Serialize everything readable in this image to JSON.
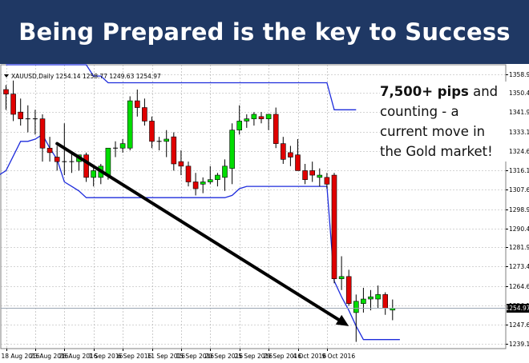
{
  "header": {
    "title": "Being Prepared is the key to Success"
  },
  "annotation": {
    "highlight": "7,500+ pips",
    "text": " and counting - a current move in the Gold market!"
  },
  "chart_data": {
    "type": "candlestick",
    "instrument_info": "XAUUSD,Daily  1254.14 1258.77 1249.63 1254.97",
    "current_price": 1254.97,
    "current_price_label": "1254.97",
    "ylim": [
      1237.0,
      1363.0
    ],
    "yticks": [
      "1358.90",
      "1350.40",
      "1341.90",
      "1333.15",
      "1324.65",
      "1316.15",
      "1307.65",
      "1298.90",
      "1290.40",
      "1281.90",
      "1273.40",
      "1264.65",
      "1256.15",
      "1247.65",
      "1239.15"
    ],
    "date_labels": [
      {
        "label": "18 Aug 2016",
        "i": 0
      },
      {
        "label": "23 Aug 2016",
        "i": 4
      },
      {
        "label": "28 Aug 2016",
        "i": 8
      },
      {
        "label": "1 Sep 2016",
        "i": 12
      },
      {
        "label": "6 Sep 2016",
        "i": 16
      },
      {
        "label": "11 Sep 2016",
        "i": 20
      },
      {
        "label": "15 Sep 2016",
        "i": 24
      },
      {
        "label": "20 Sep 2016",
        "i": 28
      },
      {
        "label": "25 Sep 2016",
        "i": 32
      },
      {
        "label": "29 Sep 2016",
        "i": 36
      },
      {
        "label": "4 Oct 2016",
        "i": 40
      },
      {
        "label": "9 Oct 2016",
        "i": 44
      }
    ],
    "candles": [
      {
        "o": 1352.0,
        "h": 1354.0,
        "l": 1343.0,
        "c": 1350.0
      },
      {
        "o": 1350.0,
        "h": 1356.0,
        "l": 1338.0,
        "c": 1341.0
      },
      {
        "o": 1342.0,
        "h": 1348.0,
        "l": 1336.0,
        "c": 1339.0
      },
      {
        "o": 1339.0,
        "h": 1345.0,
        "l": 1333.0,
        "c": 1339.0
      },
      {
        "o": 1339.0,
        "h": 1343.0,
        "l": 1332.0,
        "c": 1339.0
      },
      {
        "o": 1339.0,
        "h": 1341.0,
        "l": 1320.0,
        "c": 1326.0
      },
      {
        "o": 1326.0,
        "h": 1331.0,
        "l": 1320.0,
        "c": 1324.0
      },
      {
        "o": 1322.0,
        "h": 1327.0,
        "l": 1316.0,
        "c": 1320.0
      },
      {
        "o": 1320.0,
        "h": 1337.0,
        "l": 1314.0,
        "c": 1320.0
      },
      {
        "o": 1320.0,
        "h": 1324.0,
        "l": 1315.0,
        "c": 1320.0
      },
      {
        "o": 1320.0,
        "h": 1323.0,
        "l": 1316.0,
        "c": 1323.0
      },
      {
        "o": 1323.0,
        "h": 1324.0,
        "l": 1311.0,
        "c": 1313.0
      },
      {
        "o": 1313.0,
        "h": 1318.0,
        "l": 1309.0,
        "c": 1316.0
      },
      {
        "o": 1313.0,
        "h": 1319.0,
        "l": 1310.0,
        "c": 1318.0
      },
      {
        "o": 1314.0,
        "h": 1325.0,
        "l": 1312.0,
        "c": 1326.0
      },
      {
        "o": 1326.0,
        "h": 1329.0,
        "l": 1322.0,
        "c": 1326.0
      },
      {
        "o": 1326.0,
        "h": 1330.0,
        "l": 1324.0,
        "c": 1328.0
      },
      {
        "o": 1326.0,
        "h": 1349.0,
        "l": 1325.0,
        "c": 1347.0
      },
      {
        "o": 1347.0,
        "h": 1352.0,
        "l": 1340.0,
        "c": 1344.0
      },
      {
        "o": 1344.0,
        "h": 1348.0,
        "l": 1336.0,
        "c": 1338.0
      },
      {
        "o": 1338.0,
        "h": 1340.0,
        "l": 1326.0,
        "c": 1329.0
      },
      {
        "o": 1329.0,
        "h": 1331.0,
        "l": 1325.0,
        "c": 1329.0
      },
      {
        "o": 1329.0,
        "h": 1334.0,
        "l": 1322.0,
        "c": 1330.0
      },
      {
        "o": 1331.0,
        "h": 1333.0,
        "l": 1316.0,
        "c": 1319.0
      },
      {
        "o": 1320.0,
        "h": 1325.0,
        "l": 1314.0,
        "c": 1318.0
      },
      {
        "o": 1318.0,
        "h": 1320.0,
        "l": 1309.0,
        "c": 1311.0
      },
      {
        "o": 1311.0,
        "h": 1315.0,
        "l": 1305.0,
        "c": 1308.0
      },
      {
        "o": 1310.0,
        "h": 1313.0,
        "l": 1306.0,
        "c": 1311.0
      },
      {
        "o": 1311.0,
        "h": 1318.0,
        "l": 1310.0,
        "c": 1312.0
      },
      {
        "o": 1312.0,
        "h": 1315.0,
        "l": 1309.0,
        "c": 1314.0
      },
      {
        "o": 1313.0,
        "h": 1321.0,
        "l": 1307.0,
        "c": 1318.0
      },
      {
        "o": 1317.0,
        "h": 1337.0,
        "l": 1310.0,
        "c": 1334.0
      },
      {
        "o": 1334.0,
        "h": 1345.0,
        "l": 1332.0,
        "c": 1338.0
      },
      {
        "o": 1338.0,
        "h": 1341.0,
        "l": 1335.0,
        "c": 1339.0
      },
      {
        "o": 1339.0,
        "h": 1342.0,
        "l": 1336.0,
        "c": 1341.0
      },
      {
        "o": 1340.0,
        "h": 1342.0,
        "l": 1337.0,
        "c": 1339.0
      },
      {
        "o": 1339.0,
        "h": 1341.0,
        "l": 1334.0,
        "c": 1341.0
      },
      {
        "o": 1341.0,
        "h": 1344.0,
        "l": 1326.0,
        "c": 1328.0
      },
      {
        "o": 1328.0,
        "h": 1331.0,
        "l": 1319.0,
        "c": 1321.0
      },
      {
        "o": 1324.0,
        "h": 1327.0,
        "l": 1318.0,
        "c": 1322.0
      },
      {
        "o": 1323.0,
        "h": 1330.0,
        "l": 1316.0,
        "c": 1316.0
      },
      {
        "o": 1316.0,
        "h": 1319.0,
        "l": 1310.0,
        "c": 1312.0
      },
      {
        "o": 1316.0,
        "h": 1320.0,
        "l": 1311.0,
        "c": 1314.0
      },
      {
        "o": 1313.0,
        "h": 1317.0,
        "l": 1309.0,
        "c": 1314.0
      },
      {
        "o": 1313.0,
        "h": 1315.0,
        "l": 1308.0,
        "c": 1310.0
      },
      {
        "o": 1314.0,
        "h": 1315.0,
        "l": 1266.0,
        "c": 1268.0
      },
      {
        "o": 1268.0,
        "h": 1278.0,
        "l": 1263.0,
        "c": 1269.0
      },
      {
        "o": 1269.0,
        "h": 1272.0,
        "l": 1256.0,
        "c": 1257.0
      },
      {
        "o": 1253.0,
        "h": 1261.0,
        "l": 1240.0,
        "c": 1258.0
      },
      {
        "o": 1257.0,
        "h": 1264.0,
        "l": 1253.0,
        "c": 1259.0
      },
      {
        "o": 1259.0,
        "h": 1263.0,
        "l": 1254.0,
        "c": 1260.0
      },
      {
        "o": 1259.0,
        "h": 1265.0,
        "l": 1255.0,
        "c": 1261.0
      },
      {
        "o": 1261.0,
        "h": 1262.0,
        "l": 1252.0,
        "c": 1255.0
      },
      {
        "o": 1254.1,
        "h": 1258.8,
        "l": 1249.6,
        "c": 1255.0
      }
    ],
    "channel_upper": [
      [
        0,
        1363
      ],
      [
        9,
        1363
      ],
      [
        10,
        1363
      ],
      [
        11,
        1363
      ],
      [
        12,
        1358
      ],
      [
        13,
        1358
      ],
      [
        14,
        1355
      ],
      [
        15,
        1355
      ],
      [
        31,
        1355
      ],
      [
        33,
        1355
      ],
      [
        42,
        1355
      ],
      [
        44,
        1355
      ],
      [
        45,
        1343
      ],
      [
        48,
        1343
      ]
    ],
    "channel_lower": [
      [
        -1,
        1314
      ],
      [
        0,
        1316
      ],
      [
        2,
        1329
      ],
      [
        3,
        1329
      ],
      [
        4,
        1330
      ],
      [
        5,
        1332
      ],
      [
        6,
        1326
      ],
      [
        7,
        1321
      ],
      [
        8,
        1311
      ],
      [
        9,
        1309
      ],
      [
        10,
        1307
      ],
      [
        11,
        1304
      ],
      [
        12,
        1304
      ],
      [
        30,
        1304
      ],
      [
        31,
        1305
      ],
      [
        32,
        1308
      ],
      [
        33,
        1309
      ],
      [
        42,
        1309
      ],
      [
        44,
        1309
      ],
      [
        45,
        1267
      ],
      [
        46,
        1260
      ],
      [
        47,
        1254
      ],
      [
        48,
        1247
      ],
      [
        49,
        1241
      ],
      [
        54,
        1241
      ]
    ],
    "trend_arrow": {
      "from": {
        "i": 7,
        "price": 1328.0
      },
      "to": {
        "i": 47,
        "price": 1247.0
      }
    },
    "colors": {
      "bull": "#00dd00",
      "bear": "#e00000",
      "wick": "#000000",
      "channel": "#1e2cdc",
      "grid": "#aaaaaa",
      "arrow": "#000000",
      "banner": "#1f3864"
    }
  }
}
